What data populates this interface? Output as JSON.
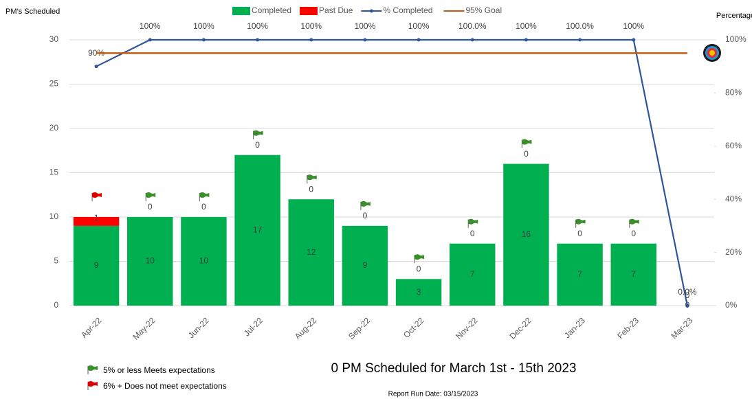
{
  "chart_data": {
    "type": "bar",
    "y_label": "PM’s Scheduled",
    "y2_label": "Percentage",
    "subtitle": "0 PM Scheduled for March 1st - 15th 2023",
    "footer": "Report Run Date: 03/15/2023",
    "notes": [
      "5% or less Meets expectations",
      "6% +  Does not meet expectations"
    ],
    "note_flags": [
      "green",
      "red"
    ],
    "categories": [
      "Apr-22",
      "May-22",
      "Jun-22",
      "Jul-22",
      "Aug-22",
      "Sep-22",
      "Oct-22",
      "Nov-22",
      "Dec-22",
      "Jan-23",
      "Feb-23",
      "Mar-23"
    ],
    "flags": [
      "red",
      "green",
      "green",
      "green",
      "green",
      "green",
      "green",
      "green",
      "green",
      "green",
      "green",
      null
    ],
    "series": [
      {
        "name": "Completed",
        "color": "#00b050",
        "values": [
          9,
          10,
          10,
          17,
          12,
          9,
          3,
          7,
          16,
          7,
          7,
          0
        ]
      },
      {
        "name": "Past Due",
        "color": "#ff0000",
        "values": [
          1,
          0,
          0,
          0,
          0,
          0,
          0,
          0,
          0,
          0,
          0,
          0
        ]
      },
      {
        "name": "% Completed",
        "type": "line",
        "axis": "y2",
        "color": "#2f5597",
        "values": [
          90,
          100,
          100,
          100,
          100,
          100,
          100,
          100,
          100,
          100,
          100,
          0
        ],
        "value_labels": [
          "90%",
          "100%",
          "100%",
          "100%",
          "100%",
          "100%",
          "100%",
          "100.0%",
          "100%",
          "100.0%",
          "100%",
          "0.0%"
        ]
      },
      {
        "name": "95% Goal",
        "type": "line",
        "axis": "y2",
        "color": "#c55a11",
        "values": [
          95,
          95,
          95,
          95,
          95,
          95,
          95,
          95,
          95,
          95,
          95,
          95
        ]
      }
    ],
    "ylim": [
      0,
      30
    ],
    "yticks": [
      0,
      5,
      10,
      15,
      20,
      25,
      30
    ],
    "y2lim": [
      0,
      100
    ],
    "y2ticks": [
      {
        "value": 0,
        "label": "0%"
      },
      {
        "value": 20,
        "label": "20%"
      },
      {
        "value": 40,
        "label": "40%"
      },
      {
        "value": 60,
        "label": "60%"
      },
      {
        "value": 80,
        "label": "80%"
      },
      {
        "value": 100,
        "label": "100%"
      }
    ],
    "grid": true
  }
}
